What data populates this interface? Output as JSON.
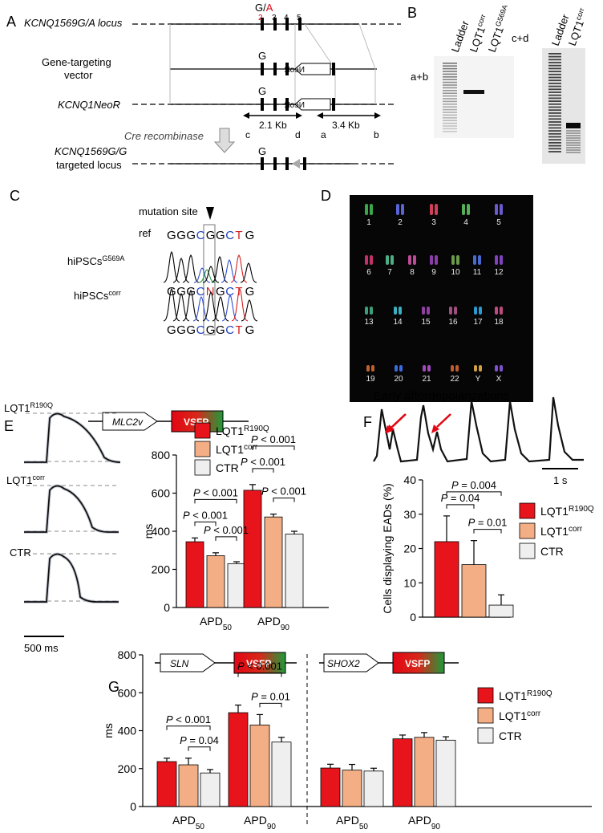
{
  "panels": {
    "A": "A",
    "B": "B",
    "C": "C",
    "D": "D",
    "E": "E",
    "F": "F",
    "G": "G"
  },
  "panel_a": {
    "locus_label": "KCNQ1569G/A locus",
    "vector_label_1": "Gene-targeting",
    "vector_label_2": "vector",
    "neor_label": "KCNQ1NeoR",
    "cre_label": "Cre recombinase",
    "targeted_label_1": "KCNQ1569G/G",
    "targeted_label_2": "targeted locus",
    "allele_top": "G/A",
    "allele_g": "G",
    "exons": [
      "2",
      "3",
      "4",
      "5"
    ],
    "neo": "NeoR",
    "dist_left": "2.1 Kb",
    "dist_right": "3.4 Kb",
    "primers": [
      "c",
      "d",
      "a",
      "b"
    ]
  },
  "panel_b": {
    "left_tag": "a+b",
    "right_tag": "c+d",
    "lanes_left": [
      "Ladder",
      "LQT1corr",
      "LQT1G569A"
    ],
    "lanes_right": [
      "Ladder",
      "LQT1corr"
    ]
  },
  "panel_c": {
    "mutation_site": "mutation site",
    "ref_label": "ref",
    "ref_seq": [
      "G",
      "G",
      "G",
      "C",
      "G",
      "G",
      "C",
      "T",
      "G"
    ],
    "mut_label": "hiPSCsG569A",
    "mut_seq": [
      "G",
      "G",
      "G",
      "C",
      "N",
      "G",
      "C",
      "T",
      "G"
    ],
    "corr_label": "hiPSCscorr",
    "corr_seq": [
      "G",
      "G",
      "G",
      "C",
      "G",
      "G",
      "C",
      "T",
      "G"
    ]
  },
  "panel_d": {
    "chromosomes": [
      "1",
      "2",
      "3",
      "4",
      "5",
      "6",
      "7",
      "8",
      "9",
      "10",
      "11",
      "12",
      "13",
      "14",
      "15",
      "16",
      "17",
      "18",
      "19",
      "20",
      "21",
      "22",
      "Y",
      "X"
    ]
  },
  "panel_e": {
    "construct_promoter": "MLC2v",
    "construct_reporter": "VSFP",
    "trace_labels": [
      "LQT1R190Q",
      "LQT1corr",
      "CTR"
    ],
    "scale_bar": "500 ms"
  },
  "panel_f": {
    "title": "Early afterdepolarizations",
    "scale_bar": "1 s"
  },
  "panel_g": {
    "left_promoter": "SLN",
    "right_promoter": "SHOX2",
    "reporter": "VSFP"
  },
  "chart_data": [
    {
      "type": "bar",
      "panel": "E",
      "categories": [
        "APD50",
        "APD90"
      ],
      "series": [
        {
          "name": "LQT1R190Q",
          "values": [
            345,
            615
          ],
          "err": [
            20,
            30
          ],
          "color": "#e8141c"
        },
        {
          "name": "LQT1corr",
          "values": [
            272,
            475
          ],
          "err": [
            15,
            15
          ],
          "color": "#f4ae85"
        },
        {
          "name": "CTR",
          "values": [
            230,
            385
          ],
          "err": [
            10,
            15
          ],
          "color": "#efefef"
        }
      ],
      "ylabel": "ms",
      "ylim": [
        0,
        800
      ],
      "yticks": [
        0,
        200,
        400,
        600,
        800
      ],
      "annotations": [
        {
          "text": "P < 0.001",
          "cat": 0,
          "from": 0,
          "to": 2
        },
        {
          "text": "P < 0.001",
          "cat": 0,
          "from": 0,
          "to": 1
        },
        {
          "text": "P < 0.001",
          "cat": 0,
          "from": 1,
          "to": 2
        },
        {
          "text": "P < 0.001",
          "cat": 1,
          "from": 0,
          "to": 2
        },
        {
          "text": "P < 0.001",
          "cat": 1,
          "from": 0,
          "to": 1
        },
        {
          "text": "P < 0.001",
          "cat": 1,
          "from": 1,
          "to": 2
        }
      ]
    },
    {
      "type": "bar",
      "panel": "F",
      "categories": [
        ""
      ],
      "series": [
        {
          "name": "LQT1R190Q",
          "values": [
            22
          ],
          "err": [
            7.5
          ],
          "color": "#e8141c"
        },
        {
          "name": "LQT1corr",
          "values": [
            15.3
          ],
          "err": [
            7
          ],
          "color": "#f4ae85"
        },
        {
          "name": "CTR",
          "values": [
            3.5
          ],
          "err": [
            3
          ],
          "color": "#efefef"
        }
      ],
      "ylabel": "Cells displaying EADs (%)",
      "ylim": [
        0,
        40
      ],
      "yticks": [
        0,
        10,
        20,
        30,
        40
      ],
      "annotations": [
        {
          "text": "P = 0.004",
          "from": 0,
          "to": 2
        },
        {
          "text": "P = 0.04",
          "from": 0,
          "to": 1
        },
        {
          "text": "P = 0.01",
          "from": 1,
          "to": 2
        }
      ]
    },
    {
      "type": "bar",
      "panel": "G",
      "categories": [
        "APD50",
        "APD90",
        "APD50",
        "APD90"
      ],
      "groups": [
        "SLN",
        "SHOX2"
      ],
      "series": [
        {
          "name": "LQT1R190Q",
          "values": [
            237,
            495,
            203,
            357
          ],
          "err": [
            18,
            40,
            20,
            20
          ],
          "color": "#e8141c"
        },
        {
          "name": "LQT1corr",
          "values": [
            220,
            430,
            192,
            365
          ],
          "err": [
            35,
            55,
            30,
            25
          ],
          "color": "#f4ae85"
        },
        {
          "name": "CTR",
          "values": [
            177,
            340,
            187,
            350
          ],
          "err": [
            18,
            25,
            15,
            18
          ],
          "color": "#efefef"
        }
      ],
      "ylabel": "ms",
      "ylim": [
        0,
        800
      ],
      "yticks": [
        0,
        200,
        400,
        600,
        800
      ],
      "annotations": [
        {
          "text": "P < 0.001",
          "cat": 0,
          "from": 0,
          "to": 2
        },
        {
          "text": "P = 0.04",
          "cat": 0,
          "from": 1,
          "to": 2
        },
        {
          "text": "P < 0.001",
          "cat": 1,
          "from": 0,
          "to": 2
        },
        {
          "text": "P = 0.01",
          "cat": 1,
          "from": 1,
          "to": 2
        }
      ]
    }
  ]
}
